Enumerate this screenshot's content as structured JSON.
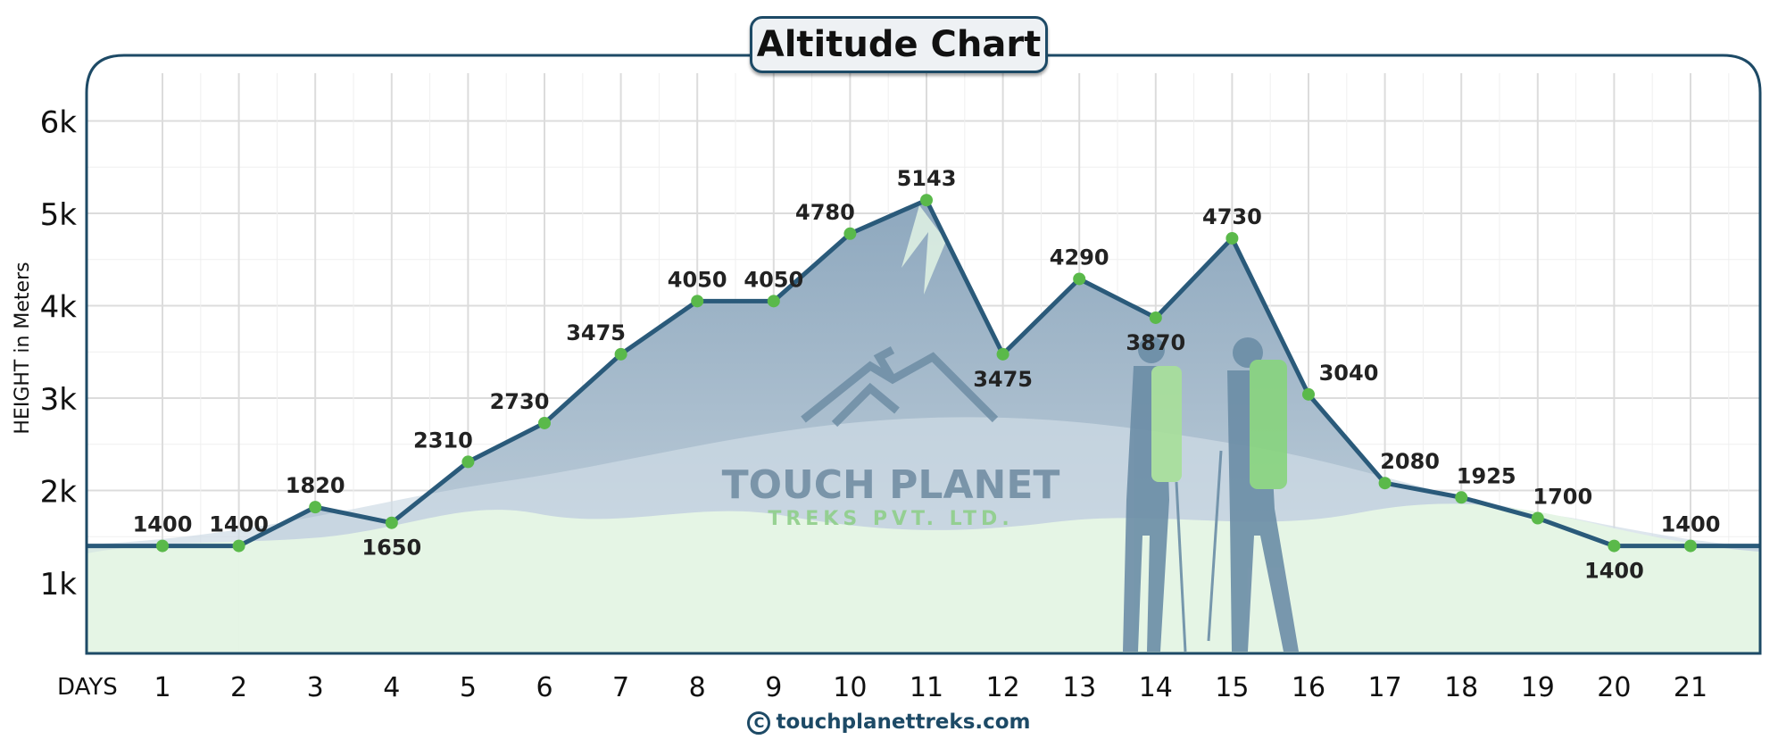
{
  "title": "Altitude Chart",
  "watermark": {
    "line1": "TOUCH PLANET",
    "line2": "TREKS PVT. LTD."
  },
  "footer": {
    "copyright_symbol": "C",
    "site": "touchplanettreks.com"
  },
  "colors": {
    "line": "#2a5a7a",
    "marker": "#5ab94a",
    "frame": "#1d4a66",
    "area_fill": "#9fb6c8",
    "ground_fill": "#e5f5e5",
    "grid": "#dcdcdc"
  },
  "chart_data": {
    "type": "line",
    "title": "Altitude Chart",
    "xlabel": "DAYS",
    "ylabel": "HEIGHT in Meters",
    "x": [
      1,
      2,
      3,
      4,
      5,
      6,
      7,
      8,
      9,
      10,
      11,
      12,
      13,
      14,
      15,
      16,
      17,
      18,
      19,
      20,
      21
    ],
    "x_tick_labels": [
      "1",
      "2",
      "3",
      "4",
      "5",
      "6",
      "7",
      "8",
      "9",
      "10",
      "11",
      "12",
      "13",
      "14",
      "15",
      "16",
      "17",
      "18",
      "19",
      "20",
      "21"
    ],
    "series": [
      {
        "values": [
          1400,
          1400,
          1820,
          1650,
          2310,
          2730,
          3475,
          4050,
          4050,
          4780,
          5143,
          3475,
          4290,
          3870,
          4730,
          3040,
          2080,
          1925,
          1700,
          1400,
          1400
        ]
      }
    ],
    "data_labels": [
      "1400",
      "1400",
      "1820",
      "1650",
      "2310",
      "2730",
      "3475",
      "4050",
      "4050",
      "4780",
      "5143",
      "3475",
      "4290",
      "3870",
      "4730",
      "3040",
      "2080",
      "1925",
      "1700",
      "1400",
      "1400"
    ],
    "y_ticks": [
      1000,
      2000,
      3000,
      4000,
      5000,
      6000
    ],
    "y_tick_labels": [
      "1k",
      "2k",
      "3k",
      "4k",
      "5k",
      "6k"
    ],
    "ylim": [
      300,
      6600
    ],
    "xlim": [
      0,
      22
    ],
    "grid": true,
    "legend": "none"
  }
}
